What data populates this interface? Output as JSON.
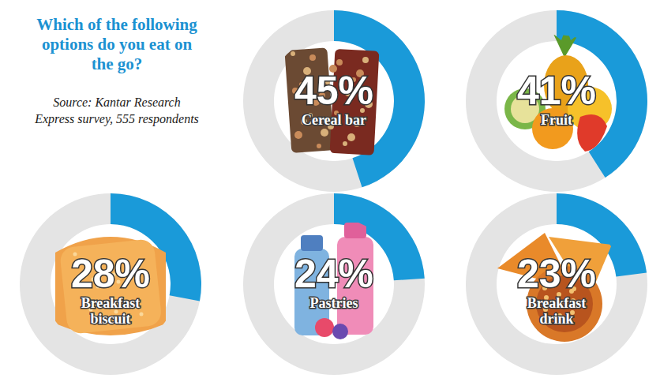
{
  "chart_data": {
    "type": "donut",
    "title": "Which of the following options do you eat on the go?",
    "subtitle": "Source: Kantar Research Express survey, 555 respondents",
    "categories": [
      "Cereal bar",
      "Fruit",
      "Breakfast biscuit",
      "Pastries",
      "Breakfast drink"
    ],
    "values": [
      45,
      41,
      28,
      24,
      23
    ],
    "value_labels": [
      "45%",
      "41%",
      "28%",
      "24%",
      "23%"
    ],
    "ylim": [
      0,
      100
    ],
    "color": "#1a9ad9",
    "data_labels": true
  }
}
